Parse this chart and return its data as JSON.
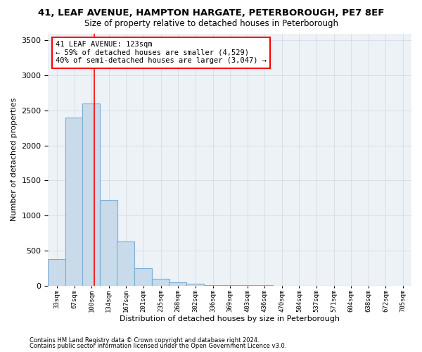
{
  "title1": "41, LEAF AVENUE, HAMPTON HARGATE, PETERBOROUGH, PE7 8EF",
  "title2": "Size of property relative to detached houses in Peterborough",
  "xlabel": "Distribution of detached houses by size in Peterborough",
  "ylabel": "Number of detached properties",
  "footnote1": "Contains HM Land Registry data © Crown copyright and database right 2024.",
  "footnote2": "Contains public sector information licensed under the Open Government Licence v3.0.",
  "annotation_line1": "41 LEAF AVENUE: 123sqm",
  "annotation_line2": "← 59% of detached houses are smaller (4,529)",
  "annotation_line3": "40% of semi-detached houses are larger (3,047) →",
  "bar_color": "#c9daea",
  "bar_edge_color": "#7aadd4",
  "vline_color": "red",
  "vline_x": 123,
  "categories": [
    "33sqm",
    "67sqm",
    "100sqm",
    "134sqm",
    "167sqm",
    "201sqm",
    "235sqm",
    "268sqm",
    "302sqm",
    "336sqm",
    "369sqm",
    "403sqm",
    "436sqm",
    "470sqm",
    "504sqm",
    "537sqm",
    "571sqm",
    "604sqm",
    "638sqm",
    "672sqm",
    "705sqm"
  ],
  "bin_edges": [
    33,
    67,
    100,
    134,
    167,
    201,
    235,
    268,
    302,
    336,
    369,
    403,
    436,
    470,
    504,
    537,
    571,
    604,
    638,
    672,
    705
  ],
  "bar_heights": [
    380,
    2400,
    2600,
    1220,
    630,
    250,
    100,
    50,
    30,
    10,
    5,
    2,
    1,
    0,
    0,
    0,
    0,
    0,
    0,
    0
  ],
  "ylim": [
    0,
    3600
  ],
  "yticks": [
    0,
    500,
    1000,
    1500,
    2000,
    2500,
    3000,
    3500
  ],
  "grid_color": "#d0d8e0",
  "bg_color": "#edf2f7",
  "title1_fontsize": 9.5,
  "title2_fontsize": 8.5,
  "xlabel_fontsize": 8,
  "ylabel_fontsize": 8
}
